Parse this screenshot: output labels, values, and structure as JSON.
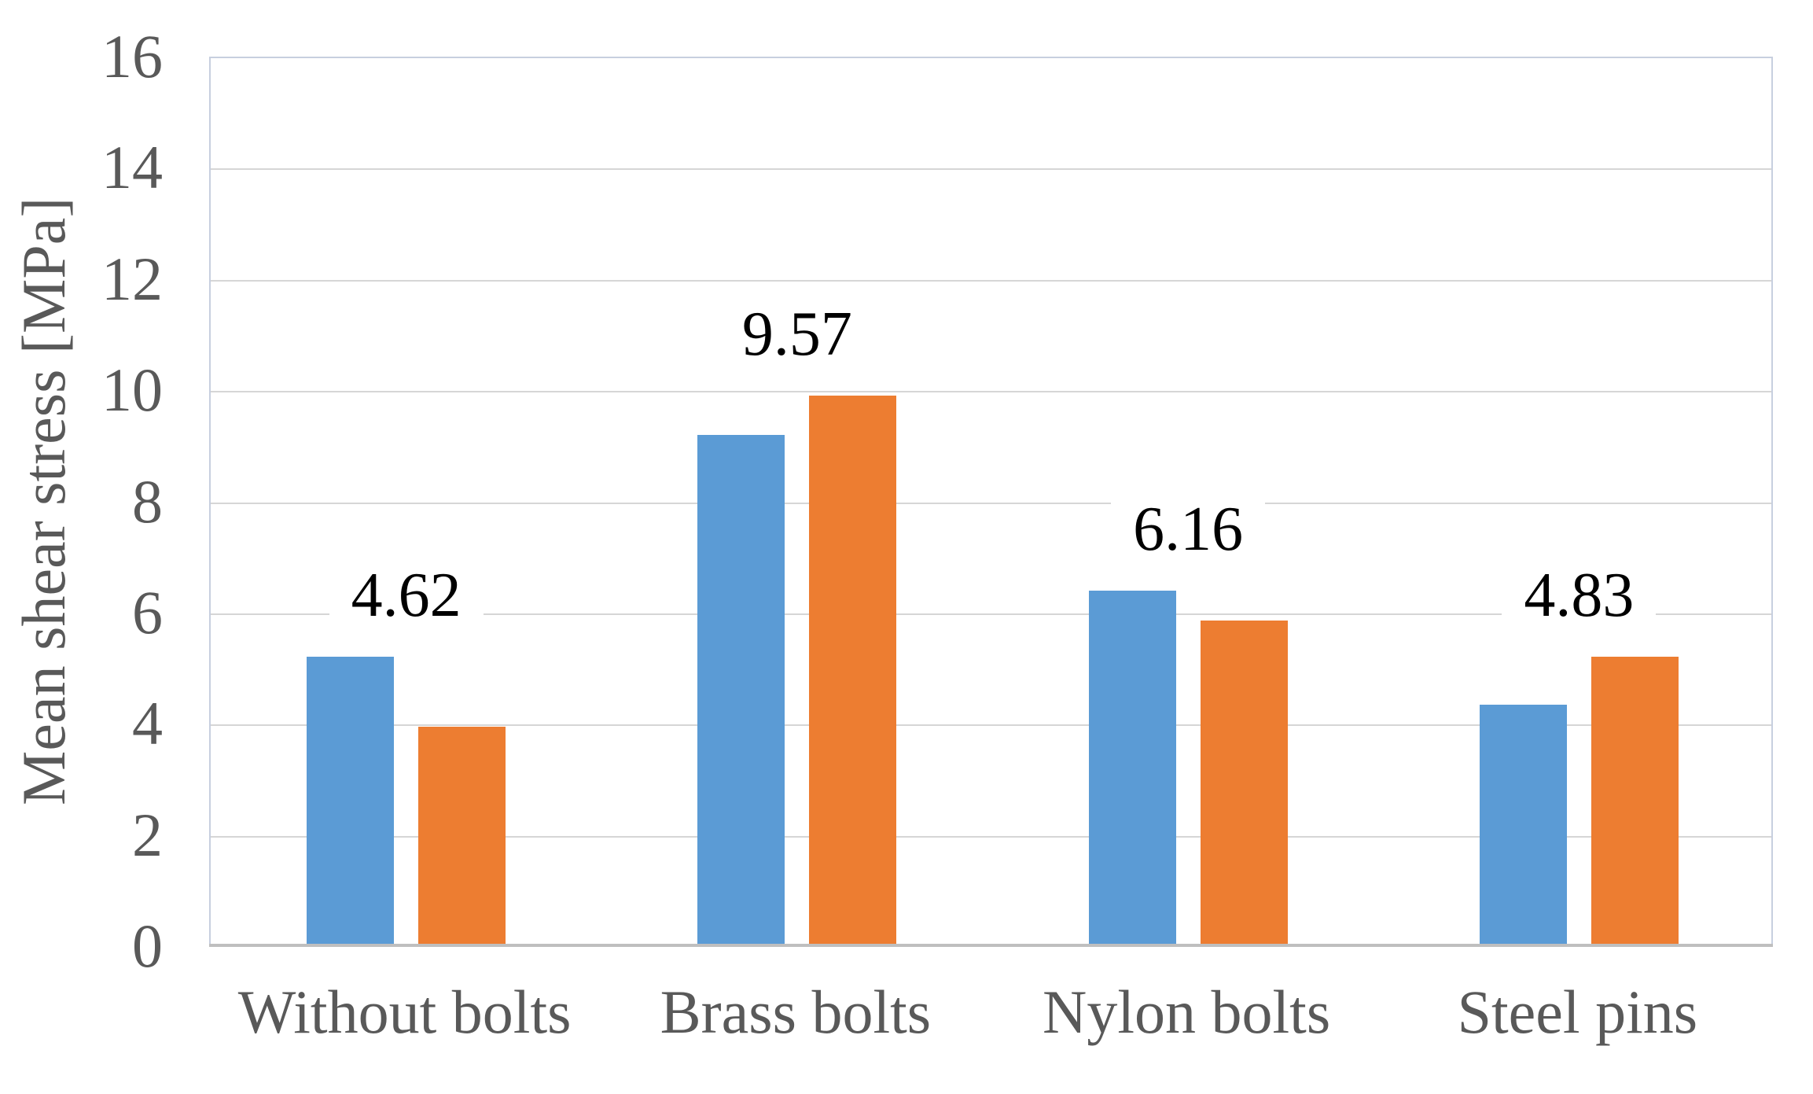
{
  "page": {
    "background": "#FFFFFF"
  },
  "chart_data": {
    "type": "bar",
    "title": "",
    "categories": [
      "Without bolts",
      "Brass bolts",
      "Nylon bolts",
      "Steel pins"
    ],
    "series": [
      {
        "color": "#5B9BD5",
        "values": [
          5.2,
          9.2,
          6.4,
          4.35
        ]
      },
      {
        "color": "#ED7D31",
        "values": [
          3.95,
          9.9,
          5.85,
          5.2
        ]
      }
    ],
    "data_labels": [
      "4.62",
      "9.57",
      "6.16",
      "4.83"
    ],
    "xlabel": "",
    "ylabel": "Mean shear stress [MPa]",
    "ylim": [
      0,
      16
    ],
    "yticks": [
      0,
      2,
      4,
      6,
      8,
      10,
      12,
      14,
      16
    ],
    "grid": true,
    "legend": "none",
    "colors": {
      "axis_text": "#595959",
      "data_label": "#000000",
      "gridline": "#D6D6D6",
      "axis_line": "#BFBFBF",
      "plot_border": "#C7CFDF"
    }
  }
}
